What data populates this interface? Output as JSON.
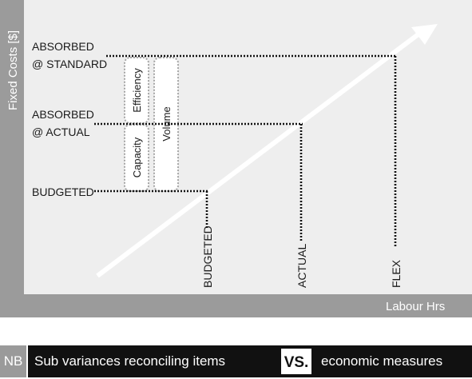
{
  "axes": {
    "y_label": "Fixed Costs [$]",
    "x_label": "Labour Hrs"
  },
  "cost_levels": {
    "absorbed_standard": [
      "ABSORBED",
      "@ STANDARD"
    ],
    "absorbed_actual": [
      "ABSORBED",
      "@ ACTUAL"
    ],
    "budgeted": "BUDGETED"
  },
  "hour_levels": {
    "budgeted": "BUDGETED",
    "actual": "ACTUAL",
    "flex": "FLEX"
  },
  "variances": {
    "efficiency": "Efficiency",
    "capacity": "Capacity",
    "volume": "Volume"
  },
  "note": {
    "tag": "NB",
    "left": "Sub variances reconciling items",
    "vs": "VS.",
    "right": "economic measures"
  },
  "colors": {
    "frame": "#9b9b9b",
    "plot_bg": "#eeeeee",
    "arrow": "#ffffff",
    "ink": "#111111"
  }
}
